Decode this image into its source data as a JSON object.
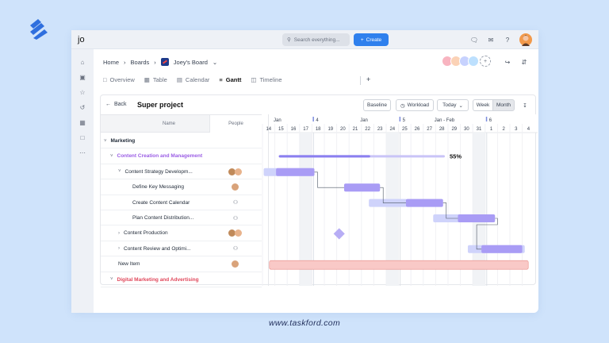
{
  "app": {
    "initials": "jo",
    "search_placeholder": "Search everything...",
    "create_label": "Create"
  },
  "breadcrumb": {
    "home": "Home",
    "boards": "Boards",
    "board": "Joey's Board"
  },
  "tabs": [
    {
      "label": "Overview",
      "icon": "overview-icon"
    },
    {
      "label": "Table",
      "icon": "table-icon"
    },
    {
      "label": "Calendar",
      "icon": "calendar-icon"
    },
    {
      "label": "Gantt",
      "icon": "gantt-icon",
      "active": true
    },
    {
      "label": "Timeline",
      "icon": "timeline-icon"
    }
  ],
  "gantt": {
    "back_label": "Back",
    "title": "Super project",
    "baseline_label": "Baseline",
    "workload_label": "Workload",
    "today_label": "Today",
    "week_label": "Week",
    "month_label": "Month",
    "col_name": "Name",
    "col_people": "People",
    "months": [
      {
        "label": "Jan",
        "col": 0
      },
      {
        "label": "4",
        "col": 4
      },
      {
        "label": "Jan",
        "col": 7
      },
      {
        "label": "5",
        "col": 11
      },
      {
        "label": "Jan - Feb",
        "col": 13
      },
      {
        "label": "6",
        "col": 18
      }
    ],
    "days": [
      "14",
      "15",
      "16",
      "17",
      "18",
      "19",
      "20",
      "21",
      "22",
      "23",
      "24",
      "25",
      "26",
      "27",
      "28",
      "29",
      "30",
      "31",
      "1",
      "2",
      "3",
      "4"
    ],
    "rows": [
      {
        "label": "Marketing",
        "level": 0,
        "caret": "down",
        "style": "group"
      },
      {
        "label": "Content Creation and Management",
        "level": 1,
        "caret": "down",
        "style": "purple"
      },
      {
        "label": "Content Strategy Developm...",
        "level": 2,
        "caret": "down",
        "people": "two"
      },
      {
        "label": "Define Key Messaging",
        "level": 3,
        "people": "one"
      },
      {
        "label": "Create Content Calendar",
        "level": 3,
        "people": "none"
      },
      {
        "label": "Plan Content Distribution...",
        "level": 3,
        "people": "none"
      },
      {
        "label": "Content Production",
        "level": 2,
        "caret": "right",
        "people": "two"
      },
      {
        "label": "Content Review and Optimi...",
        "level": 2,
        "caret": "right",
        "people": "none"
      },
      {
        "label": "New Item",
        "level": 2,
        "people": "one"
      },
      {
        "label": "Digital Marketing and Advertising",
        "level": 1,
        "caret": "down",
        "style": "red"
      }
    ],
    "progress_label": "55%",
    "progress_value": 0.55
  },
  "colors": {
    "accent": "#2f80ed",
    "purple": "#9b5de5",
    "bar": "#a99cf5",
    "bar_light": "#cfd3fb",
    "red": "#e0475b",
    "pink": "#f9c9c7"
  },
  "footer": {
    "url": "www.taskford.com"
  }
}
